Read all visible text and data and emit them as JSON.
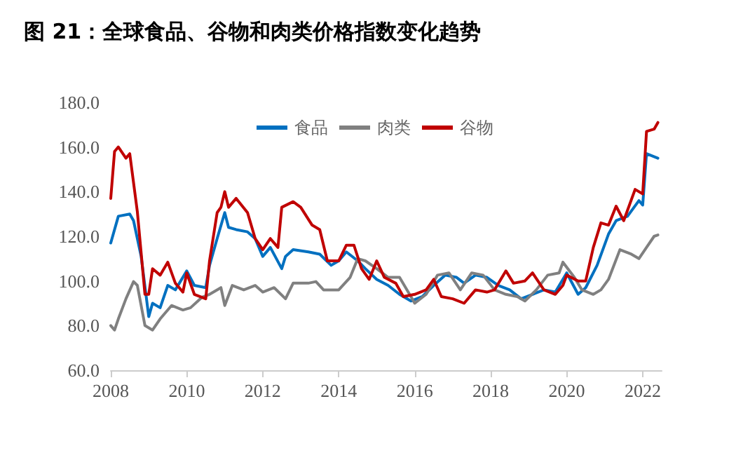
{
  "chart_data": {
    "type": "line",
    "title": "图 21：全球食品、谷物和肉类价格指数变化趋势",
    "xlim": [
      2008,
      2022.5
    ],
    "xticks": [
      2008,
      2010,
      2012,
      2014,
      2016,
      2018,
      2020,
      2022
    ],
    "ylim": [
      60,
      180
    ],
    "yticks": [
      {
        "value": 60,
        "label": "60.0"
      },
      {
        "value": 80,
        "label": "80.0"
      },
      {
        "value": 100,
        "label": "100.0"
      },
      {
        "value": 120,
        "label": "120.0"
      },
      {
        "value": 140,
        "label": "140.0"
      },
      {
        "value": 160,
        "label": "160.0"
      },
      {
        "value": 180,
        "label": "180.0"
      }
    ],
    "grid": false,
    "legend": "top",
    "marker": "none",
    "line_style": "solid",
    "series": [
      {
        "name": "食品",
        "color": "#0070c0",
        "x": [
          2008.0,
          2008.2,
          2008.5,
          2008.6,
          2008.8,
          2009.0,
          2009.1,
          2009.3,
          2009.5,
          2009.7,
          2010.0,
          2010.2,
          2010.5,
          2010.6,
          2010.8,
          2011.0,
          2011.1,
          2011.3,
          2011.6,
          2011.8,
          2012.0,
          2012.2,
          2012.5,
          2012.6,
          2012.8,
          2013.2,
          2013.5,
          2013.8,
          2014.0,
          2014.2,
          2014.5,
          2014.7,
          2015.0,
          2015.3,
          2015.6,
          2015.9,
          2016.2,
          2016.5,
          2016.8,
          2017.1,
          2017.3,
          2017.6,
          2017.9,
          2018.2,
          2018.5,
          2018.8,
          2019.1,
          2019.4,
          2019.7,
          2020.0,
          2020.3,
          2020.5,
          2020.8,
          2021.1,
          2021.3,
          2021.6,
          2021.9,
          2022.0,
          2022.1,
          2022.4
        ],
        "values": [
          117,
          129,
          130,
          127,
          111,
          84,
          90,
          88,
          98,
          96,
          104.5,
          98,
          97,
          107,
          119,
          130.6,
          124,
          123,
          122,
          119,
          111,
          115,
          105.5,
          111,
          114,
          113,
          112,
          107,
          109,
          113,
          109,
          105.5,
          100.7,
          98,
          94,
          91,
          93,
          98,
          102.6,
          101.6,
          99,
          102.6,
          101.6,
          98,
          96,
          92,
          94,
          96,
          95,
          103.6,
          94,
          97,
          107,
          121,
          127,
          129,
          136,
          134,
          157,
          155
        ]
      },
      {
        "name": "肉类",
        "color": "#808080",
        "x": [
          2008.0,
          2008.1,
          2008.2,
          2008.4,
          2008.6,
          2008.7,
          2008.9,
          2009.1,
          2009.3,
          2009.6,
          2009.9,
          2010.1,
          2010.4,
          2010.6,
          2010.9,
          2011.0,
          2011.2,
          2011.5,
          2011.8,
          2012.0,
          2012.3,
          2012.6,
          2012.8,
          2013.2,
          2013.4,
          2013.6,
          2014.0,
          2014.3,
          2014.5,
          2014.7,
          2015.0,
          2015.3,
          2015.6,
          2015.9,
          2016.0,
          2016.3,
          2016.6,
          2016.9,
          2017.2,
          2017.5,
          2017.8,
          2018.1,
          2018.4,
          2018.7,
          2018.9,
          2019.2,
          2019.5,
          2019.8,
          2019.9,
          2020.2,
          2020.4,
          2020.7,
          2020.9,
          2021.1,
          2021.4,
          2021.7,
          2021.9,
          2022.1,
          2022.3,
          2022.4
        ],
        "values": [
          80,
          78,
          83,
          92,
          99.7,
          98,
          80,
          78,
          83,
          89,
          87,
          88,
          92.7,
          94,
          97,
          89,
          98,
          96,
          98,
          95,
          97,
          92,
          99,
          99,
          99.7,
          96,
          96,
          101.6,
          110,
          109,
          105.5,
          101.6,
          101.6,
          93,
          90,
          94,
          102.6,
          103.6,
          96,
          103.6,
          102.6,
          96,
          94,
          93,
          91,
          96,
          102.6,
          103.6,
          108.4,
          101.6,
          96,
          94,
          96,
          100.7,
          114,
          112,
          110,
          115,
          120,
          120.6
        ]
      },
      {
        "name": "谷物",
        "color": "#c00000",
        "x": [
          2008.0,
          2008.1,
          2008.2,
          2008.4,
          2008.5,
          2008.7,
          2008.9,
          2009.0,
          2009.1,
          2009.3,
          2009.5,
          2009.7,
          2009.9,
          2010.0,
          2010.2,
          2010.5,
          2010.6,
          2010.8,
          2010.9,
          2011.0,
          2011.1,
          2011.3,
          2011.6,
          2011.8,
          2012.0,
          2012.2,
          2012.4,
          2012.5,
          2012.8,
          2013.0,
          2013.3,
          2013.5,
          2013.7,
          2014.0,
          2014.2,
          2014.4,
          2014.6,
          2014.8,
          2015.0,
          2015.2,
          2015.5,
          2015.7,
          2016.0,
          2016.3,
          2016.5,
          2016.7,
          2017.0,
          2017.3,
          2017.6,
          2017.9,
          2018.1,
          2018.4,
          2018.6,
          2018.9,
          2019.1,
          2019.4,
          2019.7,
          2019.9,
          2020.0,
          2020.3,
          2020.5,
          2020.7,
          2020.9,
          2021.1,
          2021.3,
          2021.5,
          2021.8,
          2022.0,
          2022.1,
          2022.3,
          2022.4
        ],
        "values": [
          137,
          158,
          160,
          155,
          157,
          131,
          94,
          94,
          105.5,
          102.6,
          108.4,
          99,
          95,
          103.6,
          94,
          92,
          109,
          130.6,
          133,
          140,
          133,
          137,
          130.6,
          119,
          114,
          119,
          115,
          133,
          135.5,
          133,
          125,
          123,
          109,
          109,
          116,
          116,
          105.5,
          100.7,
          109,
          101.6,
          99,
          93,
          94,
          96,
          100.7,
          93,
          92,
          90,
          96,
          95,
          96,
          104.5,
          99,
          100,
          103.6,
          96,
          94,
          98,
          102.6,
          100,
          100,
          115,
          126,
          125,
          133.5,
          127,
          141,
          139,
          167,
          168,
          171
        ]
      }
    ]
  }
}
